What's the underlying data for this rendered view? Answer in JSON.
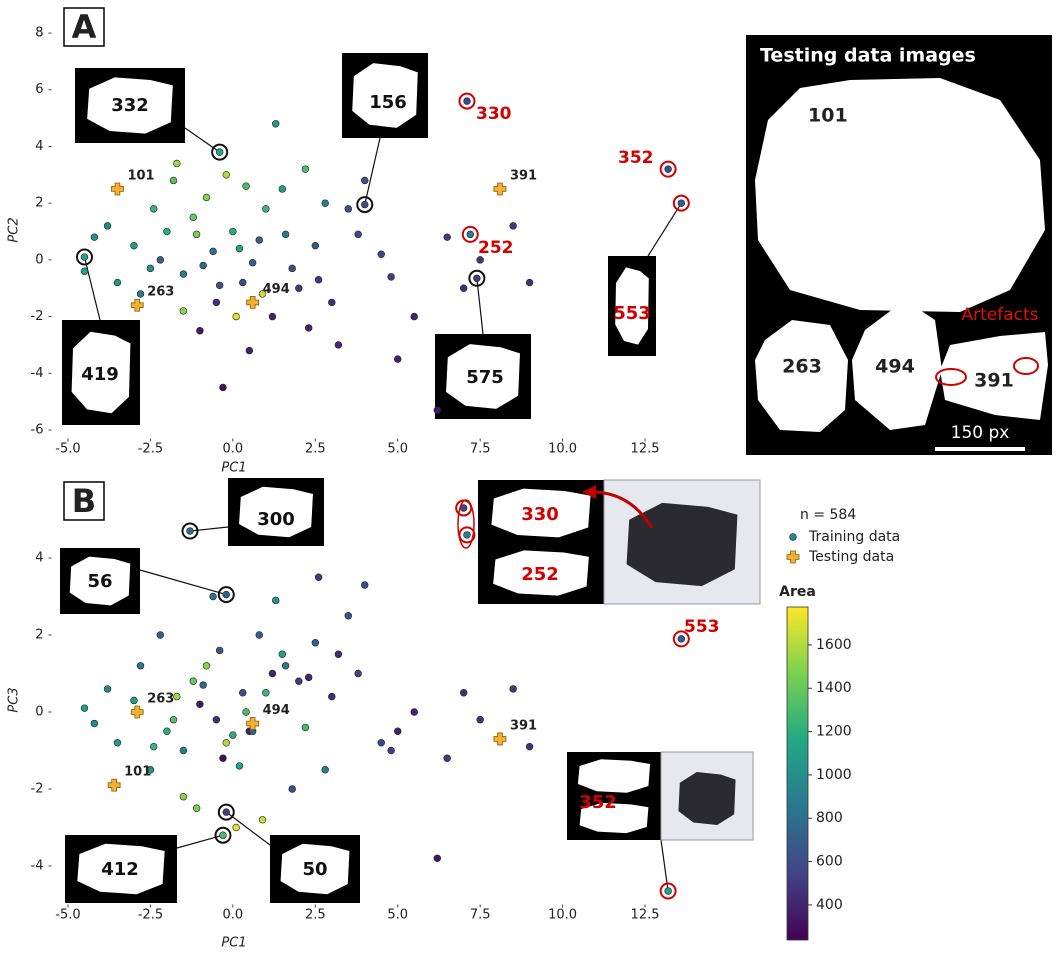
{
  "chart_data": [
    {
      "type": "scatter",
      "panel_label": "A",
      "x_label": "PC1",
      "y_label": "PC2",
      "xlim": [
        -5.5,
        14
      ],
      "ylim": [
        -6.3,
        8.4
      ],
      "xticks": [
        -5.0,
        -2.5,
        0.0,
        2.5,
        5.0,
        7.5,
        10.0,
        12.5
      ],
      "yticks": [
        -6,
        -4,
        -2,
        0,
        2,
        4,
        6,
        8
      ],
      "colormap": "viridis",
      "series": [
        {
          "name": "Training data",
          "x": [
            -1.2,
            -0.8,
            -2.0,
            0.3,
            -0.5,
            1.2,
            -3.0,
            -1.5,
            0.8,
            2.0,
            -2.5,
            -0.2,
            1.5,
            -1.0,
            0.5,
            3.0,
            -3.8,
            -4.2,
            2.5,
            4.5,
            5.5,
            6.5,
            7.0,
            8.5,
            -1.8,
            -0.6,
            1.8,
            0.0,
            -2.8,
            3.5,
            2.2,
            -0.3,
            5.0,
            6.2,
            4.0,
            -1.5,
            0.9,
            -2.2,
            1.0,
            -0.9,
            3.2,
            2.8,
            -3.5,
            0.2,
            1.6,
            -1.1,
            0.4,
            -0.4,
            2.3,
            4.8,
            7.5,
            3.8,
            -4.5,
            1.3,
            -1.7,
            0.6,
            2.6,
            9.0,
            -2.4,
            0.1
          ],
          "values": [
            1.5,
            2.2,
            1.0,
            -0.8,
            -1.5,
            -2.0,
            0.5,
            -0.5,
            0.7,
            -1.0,
            -0.3,
            3.0,
            2.5,
            -2.5,
            -3.2,
            -1.5,
            1.2,
            0.8,
            0.5,
            0.2,
            -2.0,
            0.8,
            -1.0,
            1.2,
            2.8,
            0.3,
            -0.3,
            1.0,
            -1.2,
            1.8,
            3.2,
            -4.5,
            -3.5,
            -5.3,
            2.8,
            -1.8,
            -1.2,
            0.0,
            1.8,
            -0.2,
            -3.0,
            2.0,
            -0.8,
            0.4,
            0.9,
            0.9,
            2.6,
            -0.9,
            -2.4,
            -0.6,
            0.0,
            0.9,
            -0.4,
            4.8,
            3.4,
            -0.1,
            -0.7,
            -0.8,
            1.8,
            -2.0
          ],
          "area": [
            1400,
            1500,
            1200,
            600,
            450,
            400,
            1100,
            900,
            700,
            500,
            1000,
            1600,
            1100,
            350,
            380,
            450,
            950,
            1000,
            700,
            550,
            400,
            500,
            450,
            500,
            1350,
            800,
            600,
            1200,
            850,
            650,
            1300,
            300,
            380,
            350,
            600,
            1500,
            1650,
            700,
            1250,
            750,
            420,
            900,
            1050,
            1150,
            850,
            1450,
            1300,
            650,
            400,
            520,
            480,
            560,
            1100,
            1050,
            1550,
            700,
            500,
            460,
            1250,
            1700
          ]
        },
        {
          "name": "Testing data",
          "color": "#f2b134",
          "x": [
            -3.5,
            -2.9,
            0.6,
            8.1
          ],
          "values": [
            2.5,
            -1.6,
            -1.5,
            2.5
          ],
          "labels": [
            "101",
            "263",
            "494",
            "391"
          ]
        }
      ],
      "highlights": [
        {
          "label": "332",
          "x": -0.4,
          "y": 3.8,
          "area": 1150,
          "ring": "#111111"
        },
        {
          "label": "156",
          "x": 4.0,
          "y": 1.95,
          "area": 600,
          "ring": "#111111"
        },
        {
          "label": "419",
          "x": -4.5,
          "y": 0.1,
          "area": 1100,
          "ring": "#111111"
        },
        {
          "label": "575",
          "x": 7.4,
          "y": -0.65,
          "area": 500,
          "ring": "#111111"
        },
        {
          "label": "330",
          "x": 7.1,
          "y": 5.6,
          "area": 550,
          "ring": "#d40000"
        },
        {
          "label": "352",
          "x": 13.2,
          "y": 3.2,
          "area": 600,
          "ring": "#d40000"
        },
        {
          "label": "553",
          "x": 13.6,
          "y": 2.0,
          "area": 700,
          "ring": "#d40000"
        },
        {
          "label": "252",
          "x": 7.2,
          "y": 0.9,
          "area": 900,
          "ring": "#d40000"
        }
      ]
    },
    {
      "type": "scatter",
      "panel_label": "B",
      "x_label": "PC1",
      "y_label": "PC3",
      "xlim": [
        -5.5,
        14
      ],
      "ylim": [
        -5,
        5.6
      ],
      "xticks": [
        -5.0,
        -2.5,
        0.0,
        2.5,
        5.0,
        7.5,
        10.0,
        12.5
      ],
      "yticks": [
        -4,
        -2,
        0,
        2,
        4
      ],
      "colormap": "viridis",
      "legend_title": "n = 584",
      "series": [
        {
          "name": "Training data",
          "x": [
            -1.2,
            -0.8,
            -2.0,
            0.3,
            -0.5,
            1.2,
            -3.0,
            -1.5,
            0.8,
            2.0,
            -2.5,
            -0.2,
            1.5,
            -1.0,
            0.5,
            3.0,
            -3.8,
            -4.2,
            2.5,
            4.5,
            5.5,
            6.5,
            7.0,
            8.5,
            -1.8,
            -0.6,
            1.8,
            0.0,
            -2.8,
            3.5,
            2.2,
            -0.3,
            5.0,
            6.2,
            4.0,
            -1.5,
            0.9,
            -2.2,
            1.0,
            -0.9,
            3.2,
            2.8,
            -3.5,
            0.2,
            1.6,
            -1.1,
            0.4,
            -0.4,
            2.3,
            4.8,
            7.5,
            3.8,
            -4.5,
            1.3,
            -1.7,
            0.6,
            2.6,
            9.0,
            -2.4,
            0.1
          ],
          "values": [
            0.8,
            1.2,
            -0.5,
            0.5,
            -0.2,
            1.0,
            0.3,
            -1.0,
            2.0,
            0.8,
            -1.5,
            -0.8,
            1.5,
            0.2,
            -0.5,
            0.4,
            0.6,
            -0.3,
            1.8,
            -0.8,
            0.0,
            -1.2,
            0.5,
            0.6,
            -0.2,
            3.0,
            -2.0,
            -0.6,
            1.2,
            2.5,
            -0.4,
            -1.2,
            -0.5,
            -3.8,
            3.3,
            -2.2,
            -2.8,
            2.0,
            0.5,
            0.7,
            1.5,
            -1.5,
            -0.8,
            -1.4,
            1.2,
            -2.5,
            0.0,
            1.6,
            0.9,
            -1.0,
            -0.2,
            1.0,
            0.1,
            2.9,
            0.4,
            -0.5,
            3.5,
            -0.9,
            -0.9,
            -3.0
          ],
          "area": [
            1400,
            1500,
            1200,
            600,
            450,
            400,
            1100,
            900,
            700,
            500,
            1000,
            1600,
            1100,
            350,
            380,
            450,
            950,
            1000,
            700,
            550,
            400,
            500,
            450,
            500,
            1350,
            800,
            600,
            1200,
            850,
            650,
            1300,
            300,
            380,
            350,
            600,
            1500,
            1650,
            700,
            1250,
            750,
            420,
            900,
            1050,
            1150,
            850,
            1450,
            1300,
            650,
            400,
            520,
            480,
            560,
            1100,
            1050,
            1550,
            700,
            500,
            460,
            1250,
            1700
          ]
        },
        {
          "name": "Testing data",
          "color": "#f2b134",
          "x": [
            -2.9,
            0.6,
            8.1,
            -3.6
          ],
          "values": [
            0.0,
            -0.3,
            -0.7,
            -1.9
          ],
          "labels": [
            "263",
            "494",
            "391",
            "101"
          ]
        }
      ],
      "highlights": [
        {
          "label": "300",
          "x": -1.3,
          "y": 4.7,
          "area": 800,
          "ring": "#111111"
        },
        {
          "label": "56",
          "x": -0.2,
          "y": 3.05,
          "area": 700,
          "ring": "#111111"
        },
        {
          "label": "412",
          "x": -0.3,
          "y": -3.2,
          "area": 1300,
          "ring": "#111111"
        },
        {
          "label": "50",
          "x": -0.2,
          "y": -2.6,
          "area": 500,
          "ring": "#111111"
        },
        {
          "label": "553",
          "x": 13.6,
          "y": 1.9,
          "area": 700,
          "ring": "#d40000"
        },
        {
          "label": "352",
          "x": 13.2,
          "y": -4.65,
          "area": 1100,
          "ring": "#d40000"
        },
        {
          "label": "330",
          "x": 7.0,
          "y": 5.3,
          "area": 550,
          "ring": "#d40000"
        },
        {
          "label": "252",
          "x": 7.1,
          "y": 4.6,
          "area": 900,
          "ring": "#d40000"
        }
      ],
      "colorbar": {
        "label": "Area",
        "lim": [
          238,
          1775
        ],
        "ticks": [
          400,
          600,
          800,
          1000,
          1200,
          1400,
          1600
        ]
      }
    }
  ],
  "testing_images": {
    "title": "Testing data images",
    "labels": [
      "101",
      "263",
      "494",
      "391"
    ],
    "annotation": "Artefacts",
    "scale_bar": "150 px"
  }
}
